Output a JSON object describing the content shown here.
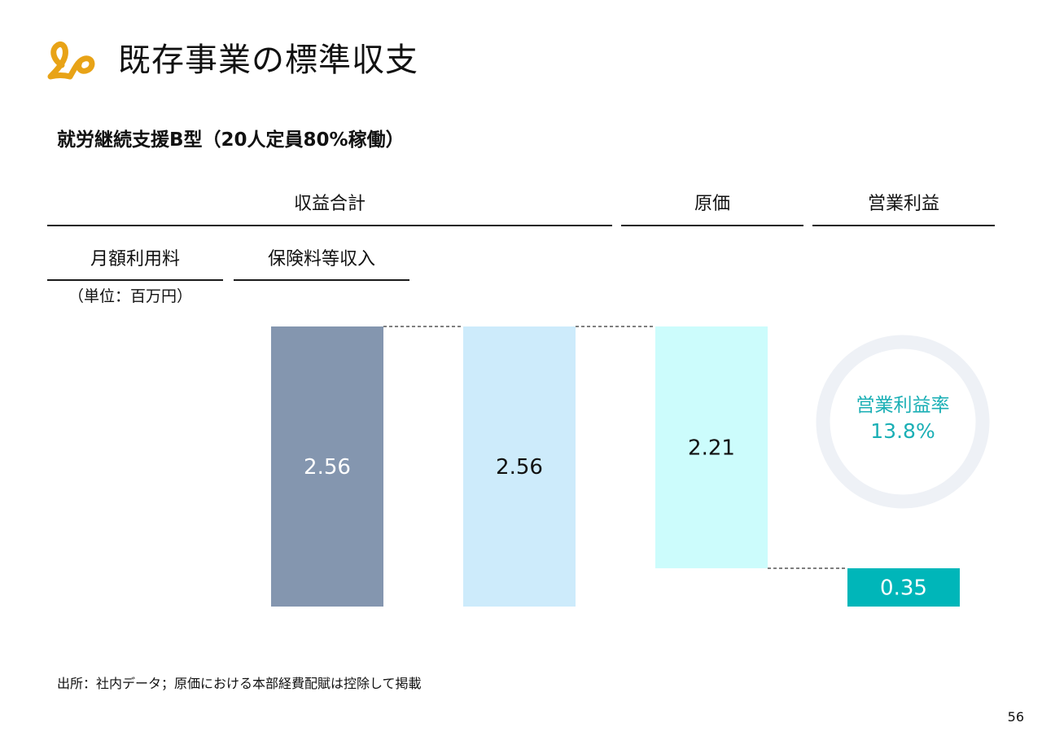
{
  "header": {
    "title": "既存事業の標準収支",
    "subtitle": "就労継続支援B型（20人定員80%稼働）",
    "brand_color": "#E8A317"
  },
  "column_headers": {
    "revenue_total": "収益合計",
    "cost": "原価",
    "operating_profit": "営業利益",
    "monthly_fee": "月額利用料",
    "insurance_income": "保険料等収入"
  },
  "unit": "（単位：百万円）",
  "chart_data": {
    "type": "bar",
    "subtype": "waterfall",
    "unit": "百万円",
    "bars": [
      {
        "value": "2.56",
        "base": 0,
        "top": 2.56,
        "color": "#8496AF",
        "label_color": "#ffffff"
      },
      {
        "value": "2.56",
        "base": 0,
        "top": 2.56,
        "color": "#CDEBFB",
        "label_color": "#111111"
      },
      {
        "value": "2.21",
        "base": 0.35,
        "top": 2.56,
        "color": "#CCFCFC",
        "label_color": "#111111"
      },
      {
        "value": "0.35",
        "base": 0,
        "top": 0.35,
        "color": "#00B6B9",
        "label_color": "#ffffff"
      }
    ],
    "connectors": "dashed",
    "ylim": [
      0,
      2.56
    ],
    "grid": false
  },
  "kpi": {
    "label": "営業利益率",
    "value": "13.8%",
    "ring_color": "#EEF1F6",
    "text_color": "#1AAFB5"
  },
  "footer": {
    "source": "出所：社内データ；原価における本部経費配賦は控除して掲載",
    "page_number": "56"
  }
}
